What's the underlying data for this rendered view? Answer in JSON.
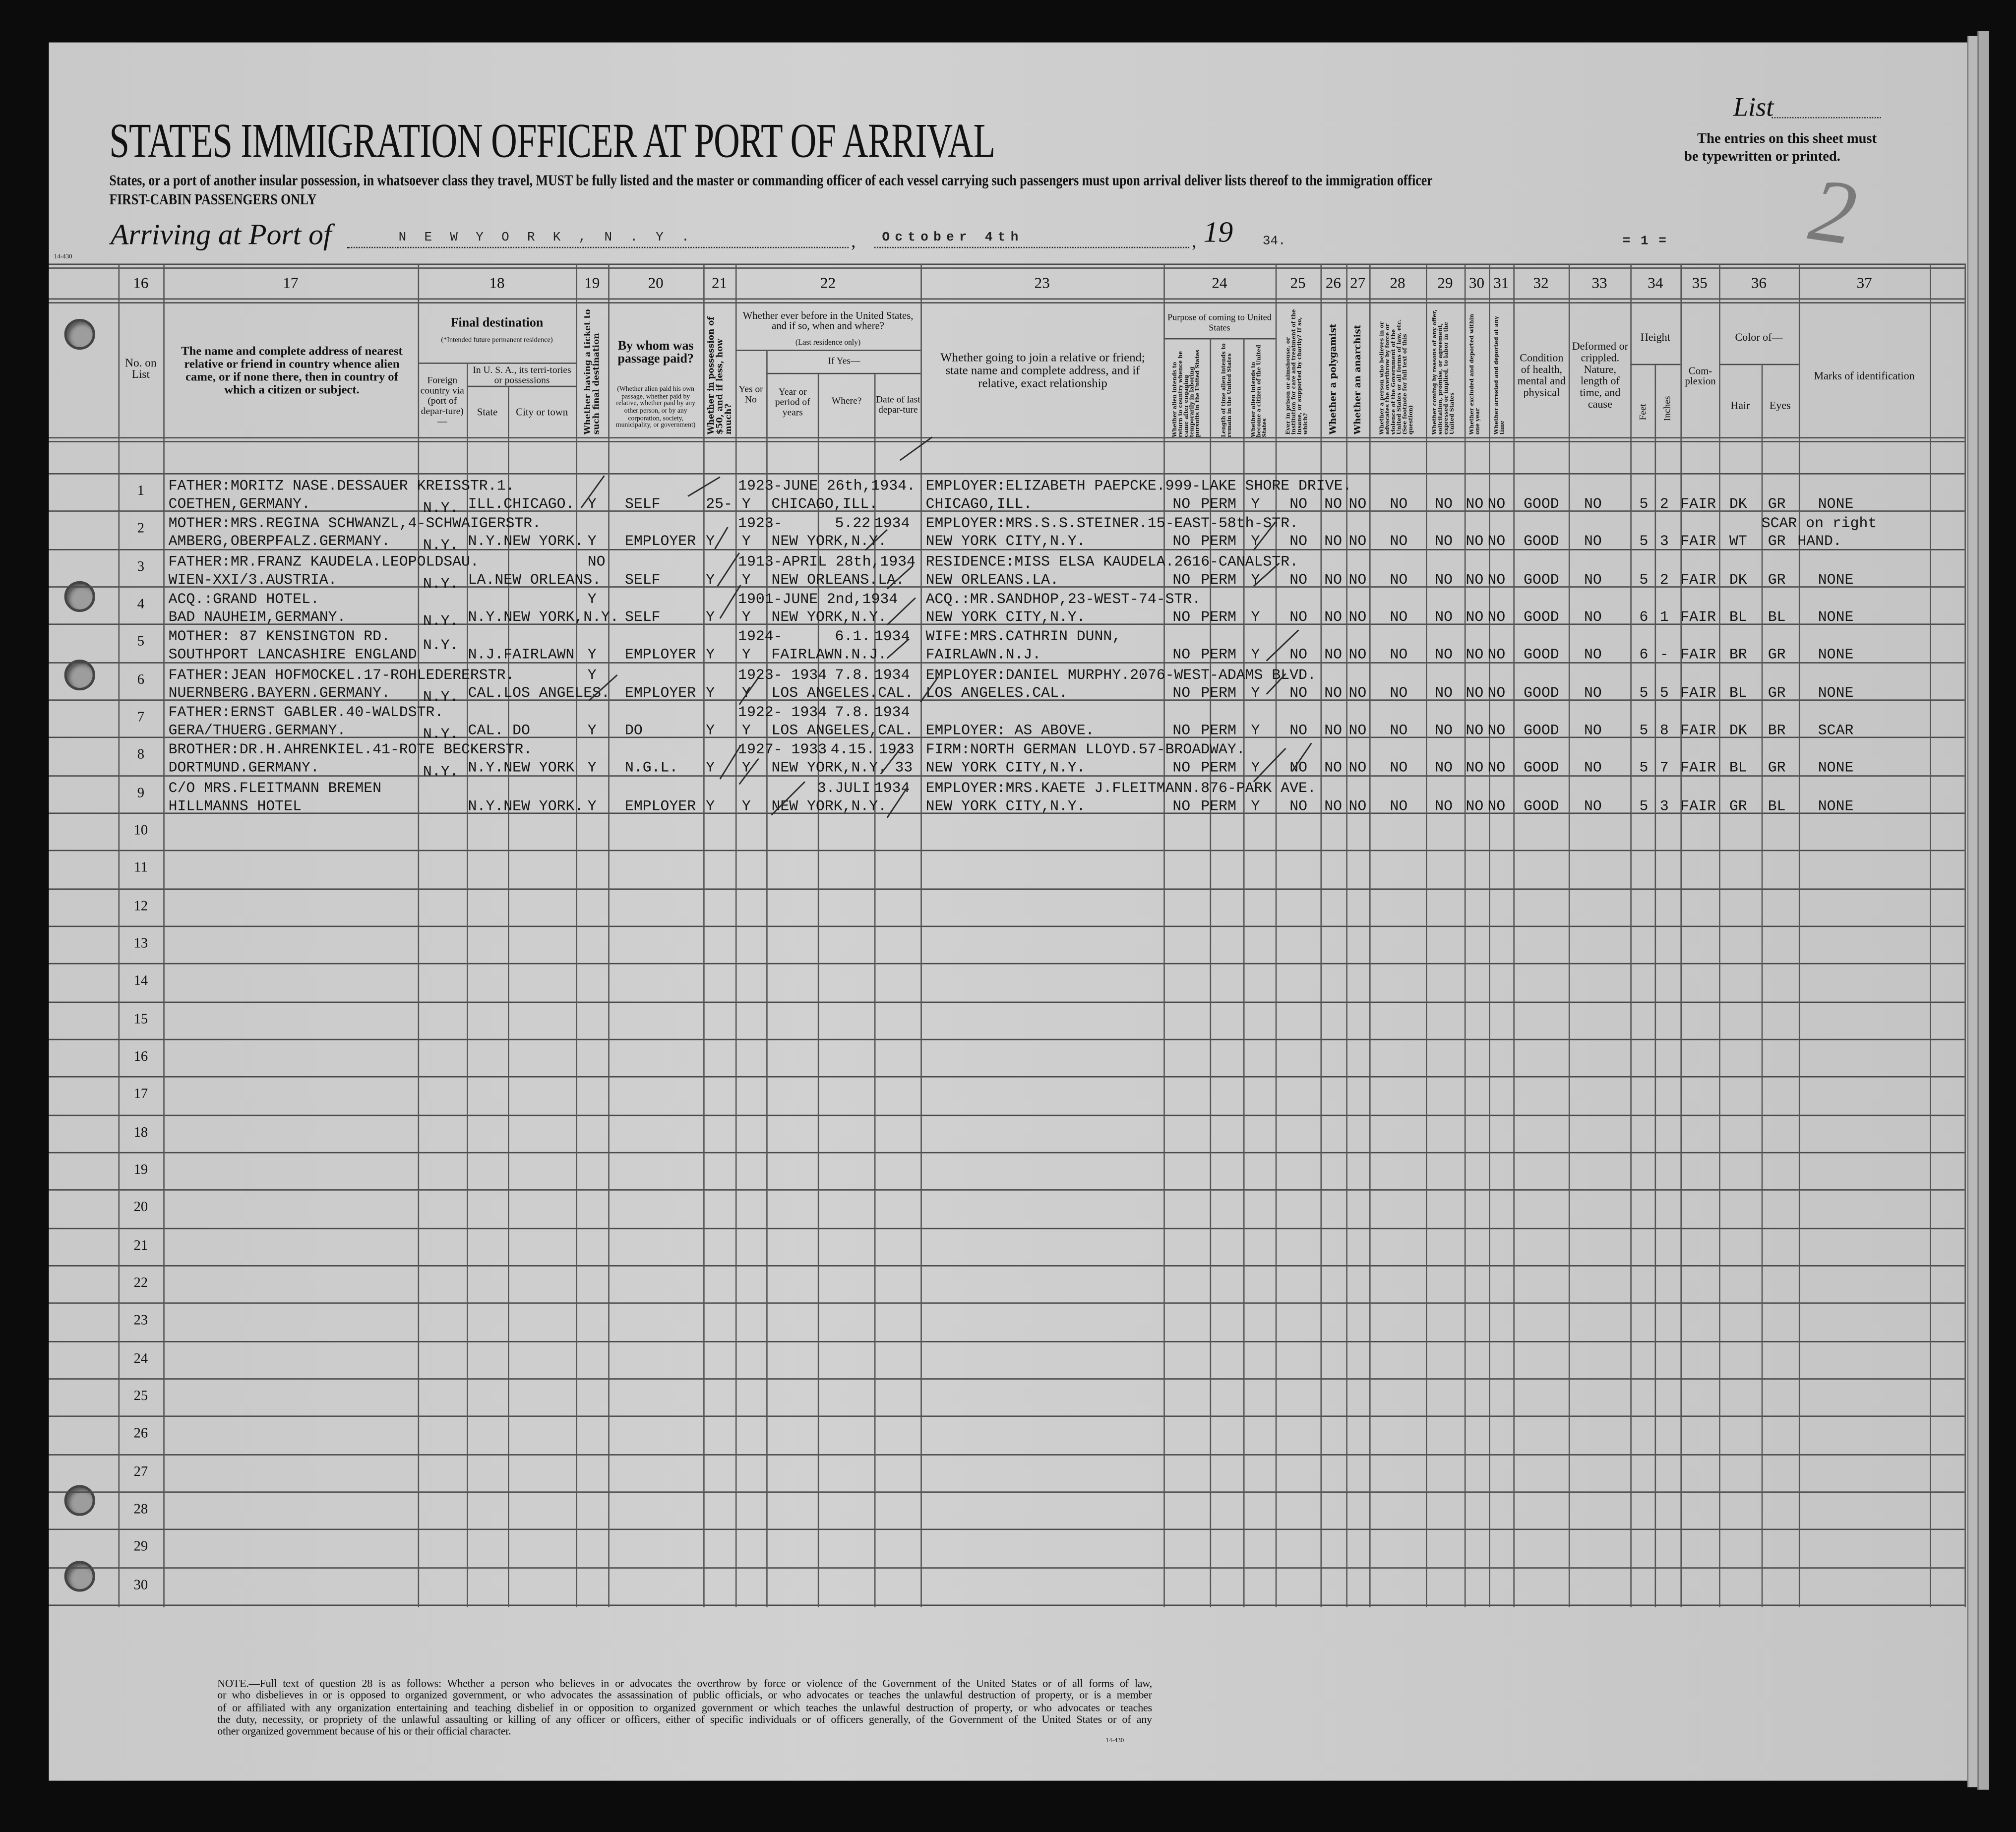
{
  "document": {
    "form_number": "14-430",
    "title": "STATES IMMIGRATION OFFICER AT PORT OF ARRIVAL",
    "subtitle": "States, or a port of another insular possession, in whatsoever class they travel, MUST be fully listed and the master or commanding officer of each vessel carrying such passengers must upon arrival deliver lists thereof to the immigration officer",
    "class_line": "FIRST-CABIN PASSENGERS ONLY",
    "list_label": "List",
    "list_number": "2",
    "entries_note_1": "The entries on this sheet must",
    "entries_note_2": "be typewritten or printed.",
    "arriving_label": "Arriving at Port of",
    "port": "N E W  Y O R K , N . Y .",
    "comma": ",",
    "date": "October 4th",
    "year_prefix": "19",
    "year_suffix": "34.",
    "sheet_number": "= 1 ="
  },
  "header": {
    "col_numbers": [
      "16",
      "17",
      "18",
      "19",
      "20",
      "21",
      "22",
      "23",
      "24",
      "25",
      "26",
      "27",
      "28",
      "29",
      "30",
      "31",
      "32",
      "33",
      "34",
      "35",
      "36",
      "37"
    ],
    "c16": "No. on List",
    "c17": "The name and complete address of nearest relative or friend in country whence alien came, or if none there, then in country of which a citizen or subject.",
    "c18_title": "Final destination",
    "c18_note": "(*Intended future permanent residence)",
    "c18_foreign": "Foreign country via (port of depar-ture)—",
    "c18_usa": "In U. S. A., its terri-tories or possessions",
    "c18_state": "State",
    "c18_city": "City or town",
    "c19": "Whether having a ticket to such final destination",
    "c20_title": "By whom was passage paid?",
    "c20_note": "(Whether alien paid his own passage, whether paid by relative, whether paid by any other person, or by any corporation, society, municipality, or government)",
    "c21": "Whether in possession of $50, and if less, how much?",
    "c22_title": "Whether ever before in the United States, and if so, when and where?",
    "c22_note": "(Last residence only)",
    "c22_ifyes": "If Yes—",
    "c22_yesno": "Yes or No",
    "c22_year": "Year or period of years",
    "c22_where": "Where?",
    "c22_date": "Date of last depar-ture",
    "c23": "Whether going to join a relative or friend; state name and complete address, and if relative, exact relationship",
    "c24_title": "Purpose of coming to United States",
    "c24_a": "Whether alien intends to return to country whence he came after engaging temporarily in laboring pursuits in the United States",
    "c24_b": "Length of time alien intends to remain in the United States",
    "c24_c": "Whether alien intends to become a citizen of the United States",
    "c25": "Ever in prison or almshouse, or institution for care and treatment of the insane, or supported by charity? If so, which?",
    "c26": "Whether a polygamist",
    "c27": "Whether an anarchist",
    "c28": "Whether a person who believes in or advocates the overthrow by force or violence of the Government of the United States or all forms of law, etc. (See footnote for full text of this question)",
    "c29": "Whether coming by reasons of any offer, solicitation, promise, or agreement, expressed or implied, to labor in the United States",
    "c30": "Whether excluded and deported within one year",
    "c31": "Whether arrested and deported at any time",
    "c32": "Condition of health, mental and physical",
    "c33": "Deformed or crippled. Nature, length of time, and cause",
    "c34_title": "Height",
    "c34_feet": "Feet",
    "c34_inches": "Inches",
    "c35": "Com-plexion",
    "c36_title": "Color of—",
    "c36_hair": "Hair",
    "c36_eyes": "Eyes",
    "c37": "Marks of identification"
  },
  "row_numbers": [
    "1",
    "2",
    "3",
    "4",
    "5",
    "6",
    "7",
    "8",
    "9",
    "10",
    "11",
    "12",
    "13",
    "14",
    "15",
    "16",
    "17",
    "18",
    "19",
    "20",
    "21",
    "22",
    "23",
    "24",
    "25",
    "26",
    "27",
    "28",
    "29",
    "30"
  ],
  "rows": [
    {
      "rel1": "FATHER:MORITZ NASE.DESSAUER KREISSTR.1.",
      "rel2": "COETHEN,GERMANY.",
      "foreign": "N.Y.",
      "dest": "ILL.CHICAGO.",
      "ticket_l2": "Y",
      "paid_by": "SELF",
      "money": "25-",
      "before": "Y",
      "period": "1923-JUNE 26th,1934.",
      "where": "CHICAGO,ILL.",
      "rel_us1": "EMPLOYER:ELIZABETH PAEPCKE.999-LAKE SHORE DRIVE.",
      "rel_us2": "CHICAGO,ILL.",
      "p_return": "NO",
      "p_length": "PERM",
      "p_citizen": "Y",
      "prison": "NO",
      "polygamist": "NO",
      "anarchist": "NO",
      "q28": "NO",
      "q29": "NO",
      "q30": "NO",
      "q31": "NO",
      "health": "GOOD",
      "deformed": "NO",
      "feet": "5",
      "inches": "2",
      "complexion": "FAIR",
      "hair": "DK",
      "eyes": "GR",
      "marks": "NONE"
    },
    {
      "rel1": "MOTHER:MRS.REGINA SCHWANZL,4-SCHWAIGERSTR.",
      "rel2": "AMBERG,OBERPFALZ.GERMANY.",
      "foreign": "N.Y.",
      "dest": "N.Y.NEW YORK.",
      "ticket_l2": "Y",
      "paid_by": "EMPLOYER",
      "money": "Y",
      "before": "Y",
      "period": "1923-",
      "date_note": "5.22",
      "last_dep": "1934",
      "where": "NEW YORK,N.Y.",
      "rel_us1": "EMPLOYER:MRS.S.S.STEINER.15-EAST-58th-STR.",
      "rel_us2": "NEW YORK CITY,N.Y.",
      "p_return": "NO",
      "p_length": "PERM",
      "p_citizen": "Y",
      "prison": "NO",
      "polygamist": "NO",
      "anarchist": "NO",
      "q28": "NO",
      "q29": "NO",
      "q30": "NO",
      "q31": "NO",
      "health": "GOOD",
      "deformed": "NO",
      "feet": "5",
      "inches": "3",
      "complexion": "FAIR",
      "hair": "WT",
      "eyes": "GR",
      "marks_l1": "SCAR on right",
      "marks_hand": "HAND."
    },
    {
      "rel1": "FATHER:MR.FRANZ KAUDELA.LEOPOLDSAU.",
      "rel2": "WIEN-XXI/3.AUSTRIA.",
      "foreign": "N.Y.",
      "dest": "LA.NEW ORLEANS.",
      "ticket_l1": "NO",
      "paid_by": "SELF",
      "money": "Y",
      "before": "Y",
      "period": "1913-APRIL 28th,1934",
      "where": "NEW ORLEANS.LA.",
      "rel_us1": "RESIDENCE:MISS ELSA KAUDELA.2616-CANALSTR.",
      "rel_us2": "NEW ORLEANS.LA.",
      "p_return": "NO",
      "p_length": "PERM",
      "p_citizen": "Y",
      "prison": "NO",
      "polygamist": "NO",
      "anarchist": "NO",
      "q28": "NO",
      "q29": "NO",
      "q30": "NO",
      "q31": "NO",
      "health": "GOOD",
      "deformed": "NO",
      "feet": "5",
      "inches": "2",
      "complexion": "FAIR",
      "hair": "DK",
      "eyes": "GR",
      "marks": "NONE"
    },
    {
      "rel1": "ACQ.:GRAND HOTEL.",
      "rel2": "BAD NAUHEIM,GERMANY.",
      "foreign": "N.Y.",
      "dest": "N.Y.NEW YORK,N.Y.",
      "ticket_l1": "Y",
      "paid_by": "SELF",
      "money": "Y",
      "before": "Y",
      "period": "1901-JUNE 2nd,1934",
      "where": "NEW YORK,N.Y.",
      "rel_us1": "ACQ.:MR.SANDHOP,23-WEST-74-STR.",
      "rel_us2": "NEW YORK CITY,N.Y.",
      "p_return": "NO",
      "p_length": "PERM",
      "p_citizen": "Y",
      "prison": "NO",
      "polygamist": "NO",
      "anarchist": "NO",
      "q28": "NO",
      "q29": "NO",
      "q30": "NO",
      "q31": "NO",
      "health": "GOOD",
      "deformed": "NO",
      "feet": "6",
      "inches": "1",
      "complexion": "FAIR",
      "hair": "BL",
      "eyes": "BL",
      "marks": "NONE"
    },
    {
      "rel1": "MOTHER: 87 KENSINGTON RD.",
      "rel2": "SOUTHPORT LANCASHIRE ENGLAND",
      "foreign_mid": "N.Y.",
      "dest": "N.J.FAIRLAWN",
      "ticket_l2": "Y",
      "paid_by": "EMPLOYER",
      "money": "Y",
      "before": "Y",
      "period": "1924-",
      "date_note": "6.1.",
      "last_dep": "1934",
      "where": "FAIRLAWN.N.J.",
      "rel_us1": "WIFE:MRS.CATHRIN DUNN,",
      "rel_us2": "FAIRLAWN.N.J.",
      "p_return": "NO",
      "p_length": "PERM",
      "p_citizen": "Y",
      "prison": "NO",
      "polygamist": "NO",
      "anarchist": "NO",
      "q28": "NO",
      "q29": "NO",
      "q30": "NO",
      "q31": "NO",
      "health": "GOOD",
      "deformed": "NO",
      "feet": "6",
      "inches": "-",
      "complexion": "FAIR",
      "hair": "BR",
      "eyes": "GR",
      "marks": "NONE"
    },
    {
      "rel1": "FATHER:JEAN HOFMOCKEL.17-ROHLEDERERSTR.",
      "rel2": "NUERNBERG.BAYERN.GERMANY.",
      "foreign": "N.Y.",
      "dest": "CAL.LOS ANGELES.",
      "ticket_l1": "Y",
      "paid_by": "EMPLOYER",
      "money": "Y",
      "before": "Y",
      "period": "1923- 1934",
      "date_note": "7.8.",
      "last_dep": "1934",
      "where": "LOS ANGELES.CAL.",
      "rel_us1": "EMPLOYER:DANIEL MURPHY.2076-WEST-ADAMS BLVD.",
      "rel_us2": "LOS ANGELES.CAL.",
      "p_return": "NO",
      "p_length": "PERM",
      "p_citizen": "Y",
      "prison": "NO",
      "polygamist": "NO",
      "anarchist": "NO",
      "q28": "NO",
      "q29": "NO",
      "q30": "NO",
      "q31": "NO",
      "health": "GOOD",
      "deformed": "NO",
      "feet": "5",
      "inches": "5",
      "complexion": "FAIR",
      "hair": "BL",
      "eyes": "GR",
      "marks": "NONE"
    },
    {
      "rel1": "FATHER:ERNST GABLER.40-WALDSTR.",
      "rel2": "GERA/THUERG.GERMANY.",
      "foreign": "N.Y.",
      "dest": "CAL.   DO",
      "ticket_l2": "Y",
      "paid_by": "DO",
      "money": "Y",
      "before": "Y",
      "period": "1922- 1934",
      "date_note": "7.8.",
      "last_dep": "1934",
      "where": "LOS ANGELES,CAL.",
      "rel_us2": "EMPLOYER:  AS ABOVE.",
      "p_return": "NO",
      "p_length": "PERM",
      "p_citizen": "Y",
      "prison": "NO",
      "polygamist": "NO",
      "anarchist": "NO",
      "q28": "NO",
      "q29": "NO",
      "q30": "NO",
      "q31": "NO",
      "health": "GOOD",
      "deformed": "NO",
      "feet": "5",
      "inches": "8",
      "complexion": "FAIR",
      "hair": "DK",
      "eyes": "BR",
      "marks": "SCAR"
    },
    {
      "rel1": "BROTHER:DR.H.AHRENKIEL.41-ROTE BECKERSTR.",
      "rel2": "DORTMUND.GERMANY.",
      "foreign": "N.Y.",
      "dest": "N.Y.NEW YORK",
      "ticket_l2": "Y",
      "paid_by": "N.G.L.",
      "money": "Y",
      "before": "Y",
      "period": "1927- 1933",
      "date_note": "4.15.",
      "date_note_b": "33",
      "last_dep": "1933",
      "where": "NEW YORK,N.Y.",
      "rel_us1": "FIRM:NORTH GERMAN LLOYD.57-BROADWAY.",
      "rel_us2": "NEW YORK CITY,N.Y.",
      "p_return": "NO",
      "p_length": "PERM",
      "p_citizen": "Y",
      "prison": "NO",
      "polygamist": "NO",
      "anarchist": "NO",
      "q28": "NO",
      "q29": "NO",
      "q30": "NO",
      "q31": "NO",
      "health": "GOOD",
      "deformed": "NO",
      "feet": "5",
      "inches": "7",
      "complexion": "FAIR",
      "hair": "BL",
      "eyes": "GR",
      "marks": "NONE"
    },
    {
      "rel1": "C/O MRS.FLEITMANN BREMEN",
      "rel2": "HILLMANNS HOTEL",
      "dest": "N.Y.NEW YORK.",
      "ticket_l2": "Y",
      "paid_by": "EMPLOYER",
      "money": "Y",
      "before": "Y",
      "date_note": "3.JULI",
      "last_dep": "1934",
      "where": "NEW YORK,N.Y.",
      "rel_us1": "EMPLOYER:MRS.KAETE J.FLEITMANN.876-PARK AVE.",
      "rel_us2": "NEW YORK CITY,N.Y.",
      "p_return": "NO",
      "p_length": "PERM",
      "p_citizen": "Y",
      "prison": "NO",
      "polygamist": "NO",
      "anarchist": "NO",
      "q28": "NO",
      "q29": "NO",
      "q30": "NO",
      "q31": "NO",
      "health": "GOOD",
      "deformed": "NO",
      "feet": "5",
      "inches": "3",
      "complexion": "FAIR",
      "hair": "GR",
      "eyes": "BL",
      "marks": "NONE"
    }
  ],
  "footnote": {
    "lines": [
      "NOTE.—Full text of question 28 is as follows: Whether a person who believes in or advocates the overthrow by force or violence of the Government of the United States or of all forms of law,",
      "or who disbelieves in or is opposed to organized government, or who advocates the assassination of public officials, or who advocates or teaches the unlawful destruction of property, or is a member",
      "of or affiliated with any organization entertaining and teaching disbelief in or opposition to organized government or which teaches the unlawful destruction of property, or who advocates or teaches",
      "the duty, necessity, or propriety of the unlawful assaulting or killing of any officer or officers, either of specific individuals or of officers generally, of the Government of the United States or of any",
      "other organized government because of his or their official character."
    ],
    "form_number": "14-430"
  }
}
